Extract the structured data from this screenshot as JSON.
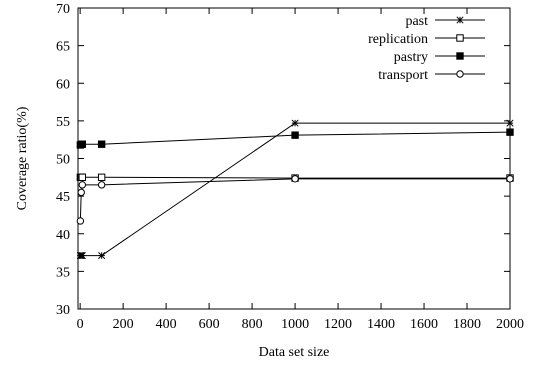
{
  "chart_data": {
    "type": "line",
    "title": "",
    "xlabel": "Data set size",
    "ylabel": "Coverage ratio(%)",
    "xlim": [
      -10,
      2000
    ],
    "ylim": [
      30,
      70
    ],
    "x_ticks": [
      0,
      200,
      400,
      600,
      800,
      1000,
      1200,
      1400,
      1600,
      1800,
      2000
    ],
    "y_ticks": [
      30,
      35,
      40,
      45,
      50,
      55,
      60,
      65,
      70
    ],
    "grid": false,
    "legend": "top-right",
    "series": [
      {
        "name": "past",
        "marker": "star",
        "x": [
          1,
          5,
          10,
          100,
          1000,
          2000
        ],
        "y": [
          37.1,
          37.1,
          37.1,
          37.1,
          54.7,
          54.7
        ]
      },
      {
        "name": "replication",
        "marker": "open-square",
        "x": [
          1,
          5,
          10,
          100,
          1000,
          2000
        ],
        "y": [
          47.5,
          47.5,
          47.5,
          47.5,
          47.4,
          47.4
        ]
      },
      {
        "name": "pastry",
        "marker": "filled-square",
        "x": [
          1,
          5,
          10,
          100,
          1000,
          2000
        ],
        "y": [
          51.8,
          51.9,
          51.9,
          51.9,
          53.1,
          53.5
        ]
      },
      {
        "name": "transport",
        "marker": "open-circle",
        "x": [
          1,
          5,
          10,
          100,
          1000,
          2000
        ],
        "y": [
          41.7,
          45.5,
          46.5,
          46.5,
          47.3,
          47.3
        ]
      }
    ]
  }
}
